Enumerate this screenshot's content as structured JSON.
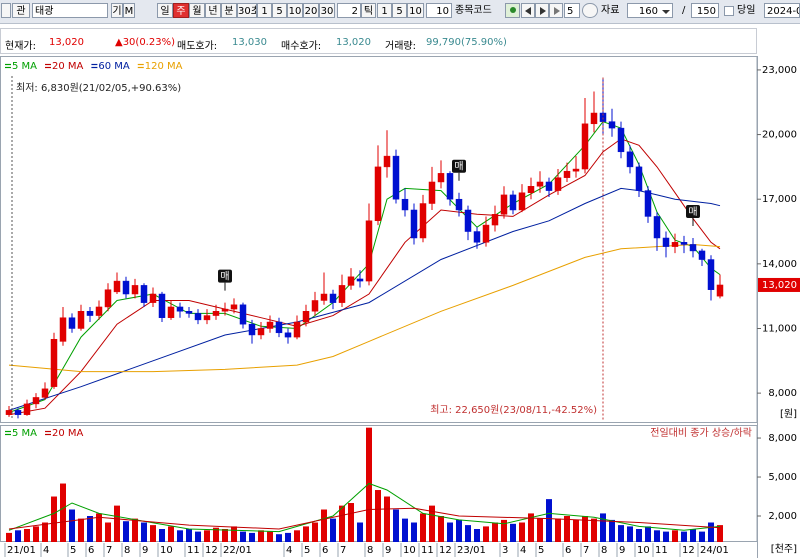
{
  "toolbar": {
    "code_tab": "관",
    "stock_name": "태광",
    "mode": [
      "기",
      "M"
    ],
    "periods": [
      "일",
      "주",
      "월",
      "년",
      "분",
      "30초"
    ],
    "minute_steps": [
      "1",
      "5",
      "10",
      "20",
      "30"
    ],
    "tick_count": "2",
    "tick_label": "틱",
    "tick_steps": [
      "1",
      "5",
      "10"
    ],
    "tick_input": "10",
    "code_label": "종목코드",
    "step_input": "5",
    "data_label": "자료",
    "count_select": "160",
    "separator": "/",
    "count_total": "150",
    "today_label": "당일",
    "date_input": "2024-0"
  },
  "info": {
    "price_label": "현재가:",
    "price": "13,020",
    "change": "▲30(0.23%)",
    "ask_label": "매도호가:",
    "ask": "13,030",
    "bid_label": "매수호가:",
    "bid": "13,020",
    "volume_label": "거래량:",
    "volume": "99,790(75.90%)"
  },
  "chart_data": [
    {
      "type": "candlestick",
      "up_color": "#e00000",
      "down_color": "#0010d0",
      "open": [
        7000,
        7200,
        7000,
        7500,
        7800,
        8300,
        10400,
        11500,
        11000,
        11800,
        11600,
        12000,
        12700,
        13200,
        12600,
        13000,
        12200,
        12600,
        11500,
        12000,
        11800,
        11700,
        11400,
        11600,
        11800,
        11900,
        12100,
        11200,
        10700,
        11000,
        11300,
        10800,
        10600,
        11300,
        11800,
        12300,
        12600,
        12200,
        13000,
        13300,
        13200,
        16000,
        18500,
        19000,
        17000,
        16500,
        15200,
        16800,
        17800,
        18200,
        17000,
        16500,
        15500,
        15000,
        15800,
        16300,
        17200,
        16500,
        17300,
        17600,
        17800,
        17400,
        18000,
        18300,
        18400,
        20500,
        21000,
        20600,
        20300,
        19200,
        18500,
        17400,
        16200,
        15200,
        14800,
        15000,
        14900,
        14600,
        14200,
        12500
      ],
      "high": [
        7400,
        7300,
        7700,
        8000,
        8500,
        10800,
        12000,
        11700,
        12100,
        12000,
        12300,
        13100,
        13600,
        13400,
        13300,
        13100,
        12900,
        12700,
        12300,
        12200,
        12000,
        11900,
        11900,
        12100,
        12200,
        12400,
        12200,
        11400,
        11300,
        11600,
        11500,
        11000,
        11600,
        12100,
        12700,
        13600,
        12800,
        13500,
        13800,
        13700,
        16800,
        19500,
        20200,
        19300,
        17500,
        16800,
        17200,
        18500,
        18800,
        18300,
        17300,
        16700,
        15700,
        16200,
        16700,
        17600,
        17400,
        17700,
        18000,
        18300,
        18000,
        18400,
        18700,
        19000,
        21700,
        22000,
        22650,
        21200,
        20600,
        19500,
        18700,
        17600,
        16400,
        15500,
        15400,
        15300,
        15200,
        14700,
        14400,
        13500
      ],
      "low": [
        6900,
        6830,
        6950,
        7300,
        7700,
        8200,
        10200,
        10800,
        10900,
        11300,
        11400,
        11800,
        12600,
        12400,
        12400,
        12000,
        12000,
        11300,
        11400,
        11500,
        11500,
        11200,
        11200,
        11400,
        11600,
        11700,
        11000,
        10300,
        10500,
        10800,
        10600,
        10300,
        10500,
        11100,
        11600,
        12100,
        11900,
        12000,
        12800,
        12900,
        13000,
        15800,
        18000,
        16800,
        16200,
        14900,
        15000,
        16500,
        17500,
        16700,
        16200,
        15100,
        14700,
        14800,
        15500,
        16100,
        16300,
        16400,
        17000,
        17300,
        17100,
        17200,
        17800,
        18000,
        18200,
        20100,
        20000,
        19900,
        18900,
        18200,
        17100,
        15900,
        14600,
        14300,
        14500,
        14500,
        14300,
        13900,
        12300,
        12400
      ],
      "close": [
        7200,
        7000,
        7500,
        7800,
        8200,
        10500,
        11500,
        11000,
        11800,
        11600,
        12000,
        12800,
        13200,
        12600,
        13000,
        12200,
        12600,
        11500,
        12000,
        11800,
        11700,
        11400,
        11600,
        11800,
        11900,
        12100,
        11200,
        10700,
        11000,
        11300,
        10800,
        10600,
        11300,
        11800,
        12300,
        12600,
        12200,
        13000,
        13400,
        13200,
        16000,
        18500,
        19000,
        17000,
        16500,
        15200,
        16800,
        17800,
        18200,
        17000,
        16500,
        15500,
        15000,
        15800,
        16300,
        17200,
        16500,
        17300,
        17600,
        17800,
        17400,
        18000,
        18300,
        18400,
        20500,
        21000,
        20600,
        20300,
        19200,
        18500,
        17400,
        16200,
        15200,
        14800,
        15000,
        14900,
        14600,
        14200,
        12800,
        13020
      ],
      "series": [
        {
          "name": "5 MA",
          "color": "#00a000",
          "x": [
            0,
            4,
            8,
            12,
            16,
            20,
            24,
            28,
            32,
            36,
            40,
            42,
            44,
            48,
            52,
            56,
            60,
            64,
            66,
            68,
            70,
            72,
            74,
            76,
            78,
            79
          ],
          "values": [
            7100,
            7700,
            10600,
            12300,
            12600,
            11700,
            11700,
            11100,
            11000,
            12200,
            14000,
            17000,
            17500,
            17400,
            15700,
            16800,
            17700,
            19500,
            20600,
            20300,
            18600,
            16400,
            15100,
            14800,
            13800,
            13500
          ]
        },
        {
          "name": "20 MA",
          "color": "#c00000",
          "x": [
            0,
            4,
            8,
            12,
            16,
            20,
            24,
            28,
            32,
            36,
            40,
            44,
            48,
            52,
            56,
            60,
            64,
            66,
            68,
            70,
            72,
            74,
            76,
            78,
            79
          ],
          "values": [
            7000,
            7300,
            9000,
            11200,
            12300,
            12300,
            11900,
            11500,
            11100,
            11600,
            12600,
            15000,
            16500,
            16300,
            16200,
            17200,
            18100,
            19200,
            19800,
            19500,
            18500,
            17300,
            16100,
            15000,
            14700
          ]
        },
        {
          "name": "60 MA",
          "color": "#0020a0",
          "x": [
            0,
            8,
            16,
            24,
            32,
            40,
            48,
            56,
            60,
            64,
            68,
            70,
            72,
            74,
            76,
            78,
            79
          ],
          "values": [
            7200,
            8300,
            9500,
            10700,
            11300,
            12200,
            14200,
            15500,
            16000,
            16800,
            17500,
            17400,
            17200,
            17000,
            16900,
            16800,
            16700
          ]
        },
        {
          "name": "120 MA",
          "color": "#e8a000",
          "x": [
            0,
            8,
            16,
            24,
            32,
            36,
            40,
            48,
            56,
            64,
            68,
            72,
            76,
            79
          ],
          "values": [
            9300,
            9000,
            9000,
            9100,
            9300,
            9700,
            10400,
            11800,
            13000,
            14300,
            14700,
            14800,
            14900,
            14800
          ]
        }
      ],
      "ylim": [
        6660,
        23600
      ],
      "yticks": [
        {
          "value": 8000,
          "label": "8,000"
        },
        {
          "value": 11000,
          "label": "11,000"
        },
        {
          "value": 14000,
          "label": "14,000"
        },
        {
          "value": 17000,
          "label": "17,000"
        },
        {
          "value": 20000,
          "label": "20,000"
        },
        {
          "value": 23000,
          "label": "23,000"
        }
      ],
      "unit": "[원]",
      "current_label": "13,020",
      "low_note": "최저: 6,830원(21/02/05,+90.63%)",
      "high_note": "최고: 22,650원(23/08/11,-42.52%)",
      "signals": [
        {
          "label": "매",
          "index": 24
        },
        {
          "label": "매",
          "index": 50
        },
        {
          "label": "매",
          "index": 76
        }
      ]
    },
    {
      "type": "bar",
      "categories": [
        "21/01",
        null,
        null,
        null,
        "4",
        null,
        null,
        "5",
        null,
        "6",
        null,
        "7",
        null,
        "8",
        null,
        "9",
        null,
        "10",
        null,
        null,
        "11",
        null,
        "12",
        null,
        "22/01",
        null,
        null,
        null,
        null,
        null,
        null,
        "4",
        null,
        "5",
        null,
        "6",
        null,
        "7",
        null,
        null,
        "8",
        null,
        "9",
        null,
        "10",
        null,
        "11",
        null,
        "12",
        null,
        "23/01",
        null,
        null,
        null,
        null,
        "3",
        null,
        "4",
        null,
        "5",
        null,
        null,
        "6",
        null,
        "7",
        null,
        "8",
        null,
        "9",
        null,
        "10",
        null,
        "11",
        null,
        null,
        "12",
        null,
        "24/01",
        null,
        null
      ],
      "values": [
        700,
        900,
        1000,
        1200,
        1500,
        3500,
        4500,
        2500,
        1800,
        2000,
        2200,
        1500,
        2800,
        1600,
        1800,
        1500,
        1300,
        1000,
        1200,
        900,
        1000,
        800,
        900,
        1100,
        1000,
        1200,
        800,
        700,
        900,
        800,
        600,
        700,
        900,
        1200,
        1500,
        2500,
        1800,
        2800,
        3000,
        1500,
        8800,
        4000,
        3500,
        2500,
        1800,
        1500,
        2200,
        2800,
        2000,
        1500,
        1700,
        1300,
        1000,
        1200,
        1500,
        1700,
        1400,
        1500,
        2200,
        1800,
        3300,
        1800,
        2000,
        1700,
        2000,
        1800,
        2200,
        1700,
        1300,
        1200,
        1000,
        1200,
        900,
        800,
        900,
        800,
        1000,
        800,
        1500,
        1300
      ],
      "series": [
        {
          "name": "5 MA",
          "color": "#00a000",
          "x": [
            0,
            5,
            7,
            10,
            15,
            20,
            30,
            36,
            40,
            42,
            46,
            50,
            55,
            60,
            65,
            70,
            75,
            79
          ],
          "values": [
            900,
            2200,
            3000,
            2200,
            1600,
            1000,
            800,
            2000,
            4500,
            4000,
            2200,
            1700,
            1400,
            2200,
            1900,
            1200,
            900,
            1200
          ]
        },
        {
          "name": "20 MA",
          "color": "#c00000",
          "x": [
            0,
            10,
            20,
            30,
            40,
            45,
            50,
            60,
            70,
            79
          ],
          "values": [
            1000,
            1900,
            1300,
            1000,
            2500,
            2600,
            2000,
            1800,
            1500,
            1100
          ]
        }
      ],
      "ylim": [
        0,
        8850
      ],
      "yticks": [
        {
          "value": 2000,
          "label": "2,000"
        },
        {
          "value": 5000,
          "label": "5,000"
        },
        {
          "value": 8000,
          "label": "8,000"
        }
      ],
      "unit": "[천주]",
      "note": "전일대비 종가 상승/하락"
    }
  ]
}
